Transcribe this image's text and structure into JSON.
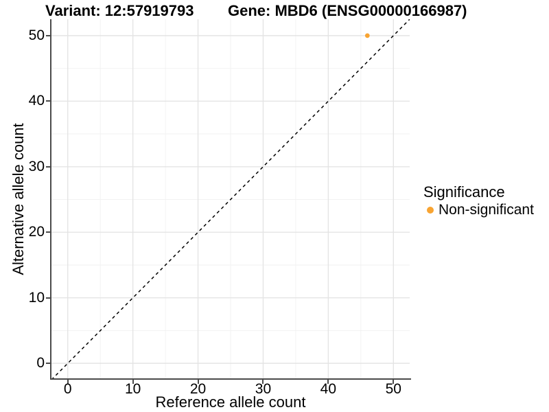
{
  "titles": {
    "variant": "Variant: 12:57919793",
    "gene": "Gene: MBD6 (ENSG00000166987)"
  },
  "legend": {
    "title": "Significance",
    "items": [
      {
        "label": "Non-significant",
        "color": "#F8A432"
      }
    ]
  },
  "chart_data": {
    "type": "scatter",
    "title": "Variant: 12:57919793 / Gene: MBD6 (ENSG00000166987)",
    "xlabel": "Reference allele count",
    "ylabel": "Alternative allele count",
    "xlim": [
      -2.5,
      52.5
    ],
    "ylim": [
      -2.5,
      52.5
    ],
    "x_ticks": [
      0,
      10,
      20,
      30,
      40,
      50
    ],
    "y_ticks": [
      0,
      10,
      20,
      30,
      40,
      50
    ],
    "x_minor": [
      5,
      15,
      25,
      35,
      45
    ],
    "y_minor": [
      5,
      15,
      25,
      35,
      45
    ],
    "grid": "major+minor",
    "legend_position": "right",
    "series": [
      {
        "name": "Non-significant",
        "color": "#F8A432",
        "points": [
          {
            "x": 46,
            "y": 50
          }
        ]
      }
    ],
    "reference_line": {
      "kind": "identity",
      "equation": "y = x",
      "style": "dashed",
      "color": "#000000"
    }
  },
  "colors": {
    "point_orange": "#F8A432",
    "axis": "#4a4a4a",
    "grid_major": "#e4e4e4",
    "grid_minor": "#f2f2f2",
    "reference_line": "#000000",
    "background": "#ffffff",
    "text": "#000000"
  }
}
